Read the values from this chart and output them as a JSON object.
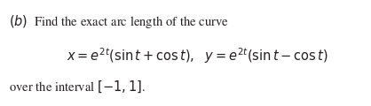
{
  "background_color": "#ffffff",
  "text_color": "#231f20",
  "figsize": [
    4.18,
    1.2
  ],
  "dpi": 100,
  "fs": 10.5
}
